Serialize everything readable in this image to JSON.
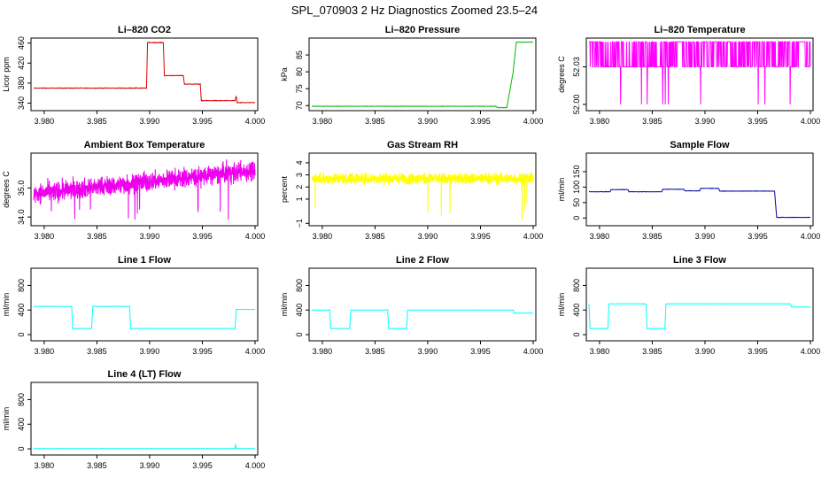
{
  "figure": {
    "title": "SPL_070903  2 Hz Diagnostics Zoomed 23.5–24"
  },
  "chart_data": [
    {
      "type": "line",
      "title": "Li–820 CO2",
      "ylabel": "Licor ppm",
      "xlim": [
        3.979,
        4.0
      ],
      "ylim": [
        325,
        470
      ],
      "xticks": [
        "3.980",
        "3.985",
        "3.990",
        "3.995",
        "4.000"
      ],
      "yticks": [
        "340",
        "380",
        "420",
        "460"
      ],
      "color": "#dd0000",
      "noise": 1,
      "segments": [
        [
          3.979,
          370
        ],
        [
          3.9897,
          370
        ],
        [
          3.9898,
          461
        ],
        [
          3.9913,
          461
        ],
        [
          3.9914,
          395
        ],
        [
          3.9932,
          395
        ],
        [
          3.9933,
          378
        ],
        [
          3.9948,
          378
        ],
        [
          3.9949,
          345
        ],
        [
          3.9981,
          345
        ],
        [
          3.9982,
          354
        ],
        [
          3.9983,
          341
        ],
        [
          3.99999,
          341
        ]
      ]
    },
    {
      "type": "line",
      "title": "Li–820 Pressure",
      "ylabel": "kPa",
      "xlim": [
        3.979,
        4.0
      ],
      "ylim": [
        68.5,
        90
      ],
      "xticks": [
        "3.980",
        "3.985",
        "3.990",
        "3.995",
        "4.000"
      ],
      "yticks": [
        "70",
        "75",
        "80",
        "85"
      ],
      "color": "#00bb00",
      "noise": 0.1,
      "segments": [
        [
          3.979,
          69.8
        ],
        [
          3.9965,
          69.8
        ],
        [
          3.9966,
          69.4
        ],
        [
          3.9975,
          69.4
        ],
        [
          3.9981,
          80
        ],
        [
          3.9984,
          88.8
        ],
        [
          3.99999,
          88.8
        ]
      ]
    },
    {
      "type": "line",
      "title": "Li–820 Temperature",
      "ylabel": "degrees C",
      "xlim": [
        3.979,
        4.0
      ],
      "ylim": [
        51.995,
        52.053
      ],
      "xticks": [
        "3.980",
        "3.985",
        "3.990",
        "3.995",
        "4.000"
      ],
      "yticks": [
        "52.00",
        "52.03"
      ],
      "color": "#ff00ff",
      "mode": "binary",
      "levels": [
        52.03,
        52.05,
        52.0
      ]
    },
    {
      "type": "line",
      "title": "Ambient Box Temperature",
      "ylabel": "degrees C",
      "xlim": [
        3.979,
        4.0
      ],
      "ylim": [
        33.7,
        36.2
      ],
      "xticks": [
        "3.980",
        "3.985",
        "3.990",
        "3.995",
        "4.000"
      ],
      "yticks": [
        "34.0",
        "35.0"
      ],
      "color": "#ee00ee",
      "mode": "noisy",
      "base": [
        34.8,
        35.6
      ],
      "amp": 0.35,
      "spike": 33.9
    },
    {
      "type": "line",
      "title": "Gas Stream RH",
      "ylabel": "percent",
      "xlim": [
        3.979,
        4.0
      ],
      "ylim": [
        -1.2,
        4.8
      ],
      "xticks": [
        "3.980",
        "3.985",
        "3.990",
        "3.995",
        "4.000"
      ],
      "yticks": [
        "−1",
        "1",
        "2",
        "3",
        "4"
      ],
      "color": "#ffff00",
      "mode": "noisy",
      "base": [
        2.7,
        2.7
      ],
      "amp": 0.5,
      "spike": -0.8
    },
    {
      "type": "line",
      "title": "Sample Flow",
      "ylabel": "ml/min",
      "xlim": [
        3.979,
        4.0
      ],
      "ylim": [
        -25,
        210
      ],
      "xticks": [
        "3.980",
        "3.985",
        "3.990",
        "3.995",
        "4.000"
      ],
      "yticks": [
        "0",
        "50",
        "100",
        "150"
      ],
      "color": "#0000aa",
      "noise": 1,
      "segments": [
        [
          3.979,
          85
        ],
        [
          3.981,
          85
        ],
        [
          3.9811,
          92
        ],
        [
          3.9827,
          92
        ],
        [
          3.9828,
          85
        ],
        [
          3.9859,
          85
        ],
        [
          3.986,
          93
        ],
        [
          3.988,
          93
        ],
        [
          3.9881,
          88
        ],
        [
          3.9895,
          88
        ],
        [
          3.9896,
          96
        ],
        [
          3.9913,
          96
        ],
        [
          3.9914,
          87
        ],
        [
          3.9966,
          87
        ],
        [
          3.9968,
          2
        ],
        [
          4.0,
          2
        ]
      ]
    },
    {
      "type": "line",
      "title": "Line 1 Flow",
      "ylabel": "ml/min",
      "xlim": [
        3.979,
        4.0
      ],
      "ylim": [
        -100,
        1080
      ],
      "xticks": [
        "3.980",
        "3.985",
        "3.990",
        "3.995",
        "4.000"
      ],
      "yticks": [
        "0",
        "400",
        "800"
      ],
      "color": "#00ffff",
      "noise": 4,
      "segments": [
        [
          3.979,
          460
        ],
        [
          3.9826,
          460
        ],
        [
          3.9827,
          100
        ],
        [
          3.9845,
          100
        ],
        [
          3.9846,
          460
        ],
        [
          3.9881,
          460
        ],
        [
          3.9882,
          100
        ],
        [
          3.9981,
          100
        ],
        [
          3.9982,
          410
        ],
        [
          4.0,
          410
        ]
      ]
    },
    {
      "type": "line",
      "title": "Line 2 Flow",
      "ylabel": "ml/min",
      "xlim": [
        3.979,
        4.0
      ],
      "ylim": [
        -100,
        1080
      ],
      "xticks": [
        "3.980",
        "3.985",
        "3.990",
        "3.995",
        "4.000"
      ],
      "yticks": [
        "0",
        "400",
        "800"
      ],
      "color": "#00ffff",
      "noise": 4,
      "segments": [
        [
          3.979,
          400
        ],
        [
          3.9807,
          400
        ],
        [
          3.9808,
          100
        ],
        [
          3.9826,
          100
        ],
        [
          3.9827,
          400
        ],
        [
          3.9862,
          400
        ],
        [
          3.9863,
          100
        ],
        [
          3.988,
          100
        ],
        [
          3.9881,
          400
        ],
        [
          3.9981,
          400
        ],
        [
          3.9982,
          350
        ],
        [
          4.0,
          350
        ]
      ]
    },
    {
      "type": "line",
      "title": "Line 3 Flow",
      "ylabel": "ml/min",
      "xlim": [
        3.979,
        4.0
      ],
      "ylim": [
        -100,
        1080
      ],
      "xticks": [
        "3.980",
        "3.985",
        "3.990",
        "3.995",
        "4.000"
      ],
      "yticks": [
        "0",
        "400",
        "800"
      ],
      "color": "#00ffff",
      "noise": 4,
      "segments": [
        [
          3.979,
          500
        ],
        [
          3.9791,
          100
        ],
        [
          3.9808,
          100
        ],
        [
          3.9809,
          500
        ],
        [
          3.9844,
          500
        ],
        [
          3.9845,
          100
        ],
        [
          3.9862,
          100
        ],
        [
          3.9863,
          500
        ],
        [
          3.9981,
          500
        ],
        [
          3.9982,
          450
        ],
        [
          4.0,
          450
        ]
      ]
    },
    {
      "type": "line",
      "title": "Line 4 (LT) Flow",
      "ylabel": "ml/min",
      "xlim": [
        3.979,
        4.0
      ],
      "ylim": [
        -100,
        1080
      ],
      "xticks": [
        "3.980",
        "3.985",
        "3.990",
        "3.995",
        "4.000"
      ],
      "yticks": [
        "0",
        "400",
        "800"
      ],
      "color": "#00ffff",
      "noise": 2,
      "segments": [
        [
          3.979,
          5
        ],
        [
          3.9981,
          5
        ],
        [
          3.99815,
          80
        ],
        [
          3.9982,
          5
        ],
        [
          4.0,
          5
        ]
      ]
    }
  ]
}
